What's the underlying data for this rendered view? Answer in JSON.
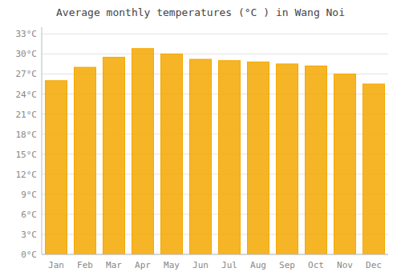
{
  "chart_data": {
    "type": "bar",
    "title": "Average monthly temperatures (°C ) in Wang Noi",
    "categories": [
      "Jan",
      "Feb",
      "Mar",
      "Apr",
      "May",
      "Jun",
      "Jul",
      "Aug",
      "Sep",
      "Oct",
      "Nov",
      "Dec"
    ],
    "values": [
      26.0,
      28.0,
      29.5,
      30.8,
      30.0,
      29.2,
      29.0,
      28.8,
      28.5,
      28.2,
      27.0,
      25.5
    ],
    "color": "#F5A800",
    "ylim": [
      0,
      34
    ],
    "yticks": [
      {
        "value": 0,
        "label": "0°C"
      },
      {
        "value": 3,
        "label": "3°C"
      },
      {
        "value": 6,
        "label": "6°C"
      },
      {
        "value": 9,
        "label": "9°C"
      },
      {
        "value": 12,
        "label": "12°C"
      },
      {
        "value": 15,
        "label": "15°C"
      },
      {
        "value": 18,
        "label": "18°C"
      },
      {
        "value": 21,
        "label": "21°C"
      },
      {
        "value": 24,
        "label": "24°C"
      },
      {
        "value": 27,
        "label": "27°C"
      },
      {
        "value": 30,
        "label": "30°C"
      },
      {
        "value": 33,
        "label": "33°C"
      }
    ],
    "grid": true
  }
}
